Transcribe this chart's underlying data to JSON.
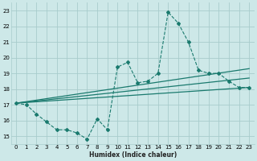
{
  "xlabel": "Humidex (Indice chaleur)",
  "xlim": [
    -0.5,
    23.5
  ],
  "ylim": [
    14.5,
    23.5
  ],
  "yticks": [
    15,
    16,
    17,
    18,
    19,
    20,
    21,
    22,
    23
  ],
  "xticks": [
    0,
    1,
    2,
    3,
    4,
    5,
    6,
    7,
    8,
    9,
    10,
    11,
    12,
    13,
    14,
    15,
    16,
    17,
    18,
    19,
    20,
    21,
    22,
    23
  ],
  "bg_color": "#cde8e8",
  "grid_color": "#a8cccc",
  "line_color": "#1a7a6e",
  "main_line_x": [
    0,
    1,
    2,
    3,
    4,
    5,
    6,
    7,
    8,
    9,
    10,
    11,
    12,
    13,
    14,
    15,
    16,
    17,
    18,
    19,
    20,
    21,
    22,
    23
  ],
  "main_line_y": [
    17.1,
    17.0,
    16.4,
    15.9,
    15.4,
    15.4,
    15.2,
    14.8,
    16.1,
    15.4,
    19.4,
    19.7,
    18.4,
    18.5,
    19.0,
    22.9,
    22.2,
    21.0,
    19.2,
    19.0,
    19.0,
    18.5,
    18.1,
    18.1
  ],
  "upper_line_x": [
    0,
    23
  ],
  "upper_line_y": [
    17.1,
    19.3
  ],
  "lower_line_x": [
    0,
    23
  ],
  "lower_line_y": [
    17.1,
    18.1
  ],
  "mid_line_x": [
    0,
    23
  ],
  "mid_line_y": [
    17.1,
    18.7
  ]
}
